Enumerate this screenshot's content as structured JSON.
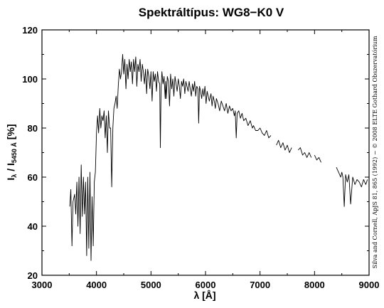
{
  "chart_data": {
    "type": "line",
    "title": "Spektráltípus: WG8−K0 V",
    "xlabel": "λ [Å]",
    "ylabel": "I_λ / I_5450 Å [%]",
    "ylabel_parts": {
      "main": "I",
      "sub1": "λ",
      "slash": " / I",
      "sub2": "5450 Å",
      "unit": " [%]"
    },
    "credit": "Silva and Cornell, ApJS 81, 865 (1992) − © 2008 ELTE Gothard Obszervatórium",
    "xlim": [
      3000,
      9000
    ],
    "ylim": [
      20,
      120
    ],
    "xticks": [
      3000,
      4000,
      5000,
      6000,
      7000,
      8000,
      9000
    ],
    "yticks": [
      20,
      40,
      60,
      80,
      100,
      120
    ],
    "grid": false,
    "series": [
      {
        "segments": [
          {
            "x": [
              3510,
              3530,
              3550,
              3570,
              3600,
              3620,
              3640,
              3660,
              3680,
              3700,
              3720,
              3740,
              3760,
              3780,
              3800,
              3820,
              3840,
              3860,
              3880,
              3900,
              3920,
              3940,
              3960,
              3980,
              4000,
              4020,
              4040,
              4060,
              4080,
              4100,
              4120,
              4140,
              4160,
              4180,
              4200,
              4220,
              4240,
              4260,
              4280,
              4300,
              4320,
              4340,
              4360,
              4380,
              4400,
              4420,
              4440,
              4460,
              4480,
              4500,
              4520,
              4540,
              4560,
              4580,
              4600,
              4620,
              4640,
              4660,
              4680,
              4700,
              4720,
              4740,
              4760,
              4780,
              4800,
              4820,
              4840,
              4860,
              4880,
              4900,
              4920,
              4940,
              4960,
              4980,
              5000,
              5020,
              5040,
              5060,
              5080,
              5100,
              5120,
              5140,
              5160,
              5172,
              5185,
              5200,
              5220,
              5240,
              5260,
              5270,
              5280,
              5300,
              5320,
              5340,
              5360,
              5380,
              5400,
              5420,
              5440,
              5460,
              5480,
              5500,
              5520,
              5540,
              5560,
              5580,
              5600,
              5620,
              5640,
              5660,
              5680,
              5700,
              5720,
              5740,
              5760,
              5780,
              5800,
              5820,
              5840,
              5860,
              5875,
              5890,
              5910,
              5930,
              5950,
              5970,
              5990,
              6010,
              6030,
              6050,
              6070,
              6100,
              6120,
              6140,
              6160,
              6180,
              6200,
              6230,
              6260,
              6290,
              6320,
              6350,
              6380,
              6410,
              6440,
              6470,
              6500,
              6530,
              6545,
              6563,
              6580,
              6610,
              6640,
              6670,
              6700,
              6740,
              6780,
              6820,
              6860,
              6880,
              6920,
              6960,
              7000,
              7040,
              7080,
              7120,
              7160,
              7200
            ],
            "y": [
              48,
              55,
              32,
              50,
              53,
              45,
              58,
              40,
              60,
              37,
              65,
              44,
              60,
              45,
              58,
              28,
              60,
              31,
              62,
              26,
              52,
              32,
              58,
              62,
              78,
              85,
              78,
              88,
              80,
              85,
              83,
              87,
              76,
              85,
              70,
              87,
              80,
              80,
              56,
              80,
              88,
              90,
              93,
              88,
              97,
              104,
              100,
              103,
              110,
              102,
              108,
              96,
              106,
              100,
              108,
              103,
              107,
              98,
              108,
              103,
              109,
              97,
              106,
              103,
              108,
              99,
              106,
              103,
              98,
              104,
              94,
              104,
              101,
              96,
              103,
              91,
              103,
              99,
              102,
              95,
              103,
              99,
              98,
              72,
              96,
              103,
              98,
              101,
              92,
              99,
              92,
              101,
              99,
              89,
              102,
              96,
              100,
              93,
              101,
              98,
              95,
              100,
              97,
              92,
              99,
              97,
              100,
              94,
              99,
              97,
              95,
              99,
              96,
              93,
              98,
              95,
              99,
              93,
              97,
              96,
              82,
              97,
              95,
              92,
              96,
              93,
              97,
              90,
              95,
              93,
              91,
              94,
              89,
              93,
              91,
              88,
              92,
              90,
              87,
              91,
              89,
              87,
              90,
              86,
              89,
              87,
              88,
              85,
              87,
              76,
              86,
              87,
              84,
              86,
              83,
              84,
              81,
              83,
              80,
              81,
              79,
              79,
              80,
              78,
              77,
              79,
              76,
              77
            ]
          },
          {
            "x": [
              7300,
              7340,
              7380,
              7420,
              7460,
              7500,
              7540,
              7580
            ],
            "y": [
              73,
              75,
              72,
              74,
              71,
              73,
              70,
              72
            ]
          },
          {
            "x": [
              7700,
              7740,
              7780,
              7820,
              7860,
              7900,
              7940
            ],
            "y": [
              71,
              72,
              69,
              70,
              68,
              70,
              68
            ]
          },
          {
            "x": [
              8000,
              8040,
              8080,
              8120
            ],
            "y": [
              69,
              67,
              68,
              66
            ]
          },
          {
            "x": [
              8400,
              8440,
              8480,
              8500,
              8520,
              8545,
              8570,
              8600,
              8630,
              8662,
              8700,
              8740,
              8780,
              8820,
              8860,
              8900,
              8940,
              8970
            ],
            "y": [
              64,
              62,
              60,
              62,
              60,
              48,
              61,
              58,
              61,
              49,
              60,
              57,
              59,
              58,
              56,
              59,
              57,
              59
            ]
          }
        ]
      }
    ]
  }
}
